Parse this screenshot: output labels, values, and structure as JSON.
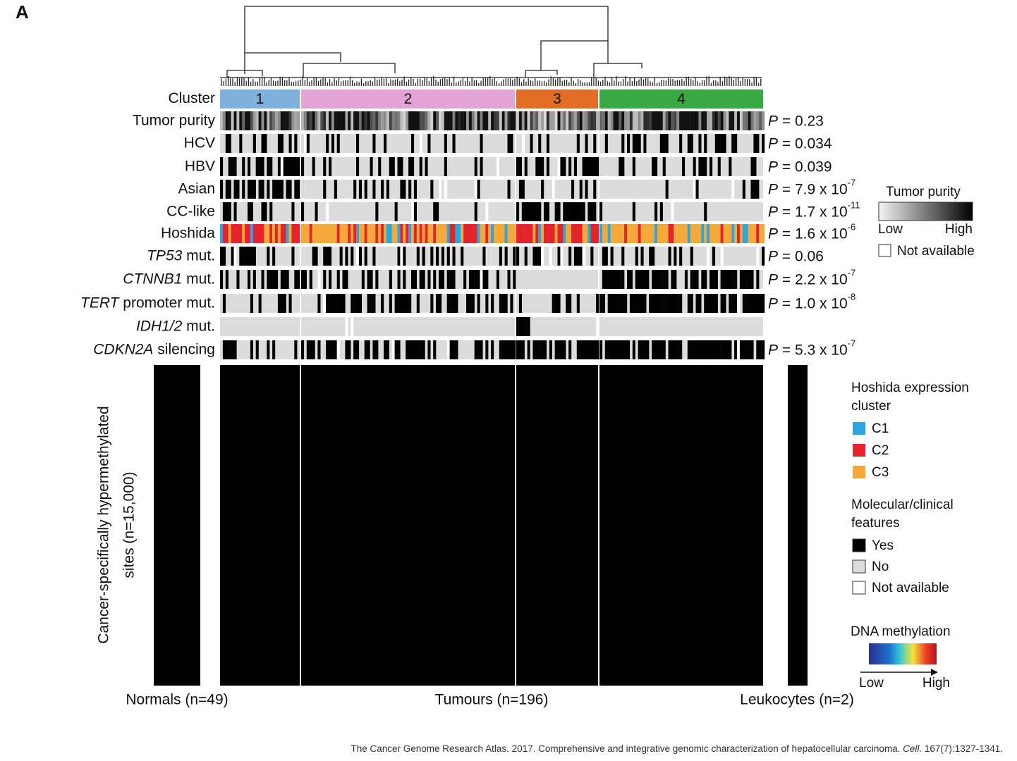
{
  "panel_label": "A",
  "cluster_label": "Cluster",
  "clusters": [
    "1",
    "2",
    "3",
    "4"
  ],
  "p_symbol": "P",
  "tracks": [
    {
      "label": "Tumor purity",
      "p": " = 0.23"
    },
    {
      "label": "HCV",
      "p": " = 0.034"
    },
    {
      "label": "HBV",
      "p": " = 0.039"
    },
    {
      "label": "Asian",
      "p": " = 7.9 x 10",
      "p_exp": "-7"
    },
    {
      "label": "CC-like",
      "p": " = 1.7 x 10",
      "p_exp": "-11"
    },
    {
      "label": "Hoshida",
      "p": " = 1.6 x 10",
      "p_exp": "-6"
    },
    {
      "label_italic": "TP53",
      "label": " mut.",
      "p": " = 0.06"
    },
    {
      "label_italic": "CTNNB1",
      "label": " mut.",
      "p": " = 2.2 x 10",
      "p_exp": "-7"
    },
    {
      "label_italic": "TERT",
      "label": " promoter mut.",
      "p": " = 1.0 x 10",
      "p_exp": "-8"
    },
    {
      "label_italic": "IDH1/2",
      "label": " mut."
    },
    {
      "label_italic": "CDKN2A",
      "label": " silencing",
      "p": " = 5.3 x 10",
      "p_exp": "-7"
    }
  ],
  "purity_legend": {
    "title": "Tumor purity",
    "low": "Low",
    "high": "High",
    "na": "Not available"
  },
  "hoshida_legend": {
    "title": [
      "Hoshida expression",
      "cluster"
    ],
    "items": [
      {
        "name": "C1",
        "color": "#2aa7de"
      },
      {
        "name": "C2",
        "color": "#e3242b"
      },
      {
        "name": "C3",
        "color": "#f6a93b"
      }
    ]
  },
  "features_legend": {
    "title": [
      "Molecular/clinical",
      "features"
    ],
    "items": [
      "Yes",
      "No",
      "Not available"
    ]
  },
  "methylation_legend": {
    "title": "DNA methylation",
    "low": "Low",
    "high": "High"
  },
  "y_axis_label": [
    "Cancer-specifically hypermethylated",
    "sites (n=15,000)"
  ],
  "groups": [
    "Normals (n=49)",
    "Tumours (n=196)",
    "Leukocytes (n=2)"
  ],
  "citation": {
    "before": "The Cancer Genome Research Atlas. 2017. Comprehensive and integrative genomic characterization of hepatocellular carcinoma. ",
    "journal": "Cell",
    "after": ". 167(7):1327-1341."
  }
}
